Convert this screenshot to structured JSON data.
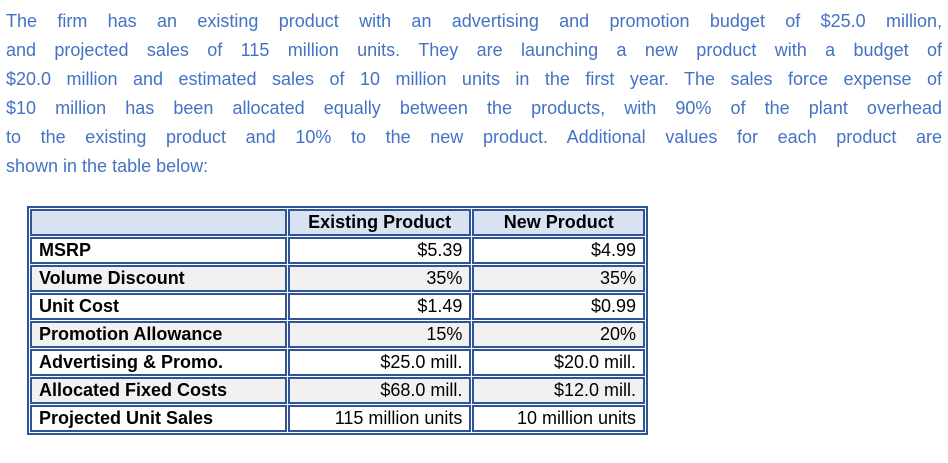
{
  "paragraph": {
    "lines": [
      "The firm has an existing product with an advertising and promotion budget of $25.0 million,",
      "and projected sales of 115 million units. They are launching a new product with a budget of",
      "$20.0 million and estimated sales of 10 million units in the first year. The sales force expense of",
      "$10 million has been allocated equally between the products, with 90% of the plant overhead",
      "to the existing product and 10% to the new product. Additional values for each product are",
      "shown in the table below:"
    ]
  },
  "table": {
    "columns": [
      "",
      "Existing Product",
      "New Product"
    ],
    "rows": [
      {
        "label": "MSRP",
        "existing": "$5.39",
        "new": "$4.99"
      },
      {
        "label": "Volume Discount",
        "existing": "35%",
        "new": "35%"
      },
      {
        "label": "Unit Cost",
        "existing": "$1.49",
        "new": "$0.99"
      },
      {
        "label": "Promotion Allowance",
        "existing": "15%",
        "new": "20%"
      },
      {
        "label": "Advertising & Promo.",
        "existing": "$25.0 mill.",
        "new": "$20.0 mill."
      },
      {
        "label": "Allocated Fixed Costs",
        "existing": "$68.0 mill.",
        "new": "$12.0 mill."
      },
      {
        "label": "Projected Unit Sales",
        "existing": "115 million units",
        "new": "10 million units"
      }
    ]
  },
  "colors": {
    "paragraph_text": "#4472C4",
    "table_border": "#2F5597",
    "table_header_bg": "#D9E2F3",
    "table_alt_row_bg": "#F1F1F1",
    "table_text": "#000000",
    "background": "#FFFFFF"
  }
}
